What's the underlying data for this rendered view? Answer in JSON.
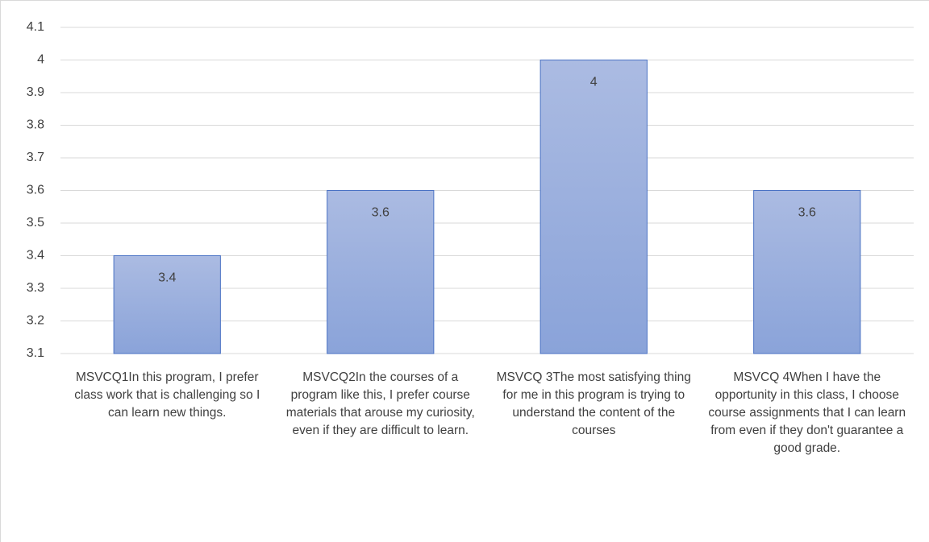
{
  "chart_data": {
    "type": "bar",
    "categories": [
      "MSVCQ1In this program, I prefer class work that is challenging so I can learn new things.",
      "MSVCQ2In the courses of a program like this, I prefer course materials that arouse my curiosity, even if they are difficult to learn.",
      "MSVCQ 3The most satisfying thing for me in this program is trying to understand the content of the courses",
      "MSVCQ 4When I have the opportunity in this class, I choose course assignments that I can learn from even if they don't guarantee a good grade."
    ],
    "values": [
      3.4,
      3.6,
      4,
      3.6
    ],
    "color": "#8faadc",
    "ylim": [
      3.1,
      4.1
    ],
    "yticks": [
      3.1,
      3.2,
      3.3,
      3.4,
      3.5,
      3.6,
      3.7,
      3.8,
      3.9,
      4,
      4.1
    ],
    "grid": true
  }
}
